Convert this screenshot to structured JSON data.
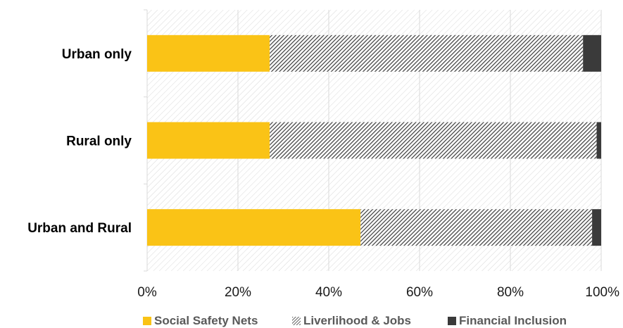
{
  "chart_data": {
    "type": "bar",
    "orientation": "horizontal",
    "stacked": true,
    "normalized": true,
    "categories": [
      "Urban only",
      "Rural only",
      "Urban and Rural"
    ],
    "series": [
      {
        "name": "Social Safety Nets",
        "values": [
          27,
          27,
          47
        ],
        "color": "#FAC316",
        "pattern": "solid"
      },
      {
        "name": "Liverlihood & Jobs",
        "values": [
          69,
          72,
          51
        ],
        "color": "#3a3a3a",
        "pattern": "diagonal-hatch"
      },
      {
        "name": "Financial Inclusion",
        "values": [
          4,
          1,
          2
        ],
        "color": "#3a3a3a",
        "pattern": "solid"
      }
    ],
    "xaxis": {
      "ticks": [
        0,
        20,
        40,
        60,
        80,
        100
      ],
      "tick_labels": [
        "0%",
        "20%",
        "40%",
        "60%",
        "80%",
        "100%"
      ],
      "xlim": [
        0,
        100
      ]
    },
    "legend": {
      "placement": "bottom",
      "entries": [
        "Social Safety Nets",
        "Liverlihood & Jobs",
        "Financial Inclusion"
      ]
    },
    "plot_background": "light-diagonal-hatch",
    "title": "",
    "xlabel": "",
    "ylabel": ""
  }
}
